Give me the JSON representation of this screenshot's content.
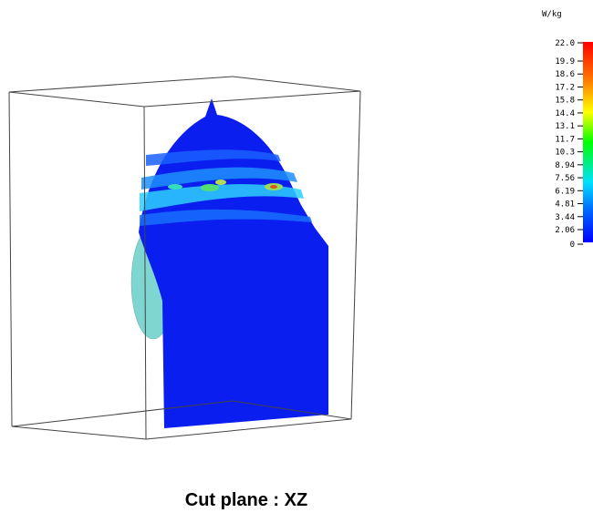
{
  "colorbar": {
    "unit": "W/kg",
    "ticks": [
      "22.0",
      "19.9",
      "18.6",
      "17.2",
      "15.8",
      "14.4",
      "13.1",
      "11.7",
      "10.3",
      "8.94",
      "7.56",
      "6.19",
      "4.81",
      "3.44",
      "2.06",
      "0"
    ]
  },
  "caption": "Cut plane : XZ"
}
